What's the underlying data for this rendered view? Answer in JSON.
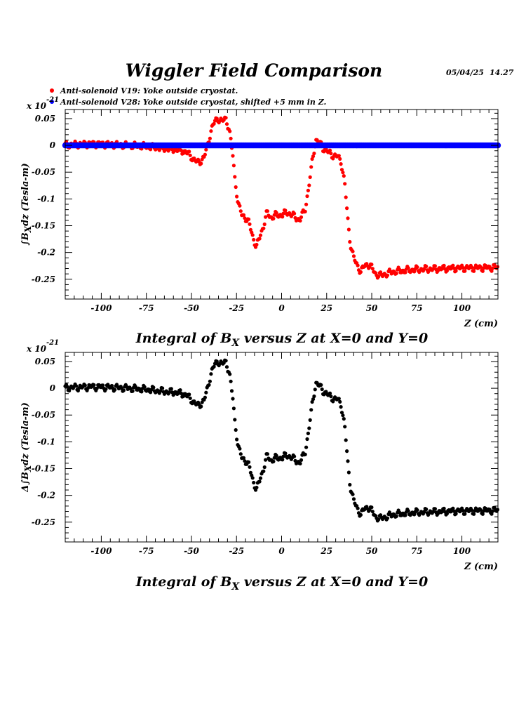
{
  "header": {
    "title": "Wiggler Field Comparison",
    "date": "05/04/25",
    "time": "14.27"
  },
  "legend": [
    {
      "label": "Anti-solenoid V19: Yoke outside cryostat.",
      "color": "#ff0000"
    },
    {
      "label": "Anti-solenoid V28: Yoke outside cryostat, shifted +5 mm in Z.",
      "color": "#0000ff"
    }
  ],
  "chart_data": [
    {
      "type": "scatter",
      "multiplier_prefix": "x 10",
      "multiplier_exponent": "-21",
      "ylabel_parts": [
        "∫B",
        "X",
        "dz  (Tesla-m)"
      ],
      "xlabel": "Z (cm)",
      "caption_parts": [
        "Integral of B",
        "X",
        " versus Z at X=0 and Y=0"
      ],
      "xlim": [
        -120,
        120
      ],
      "ylim": [
        -0.287,
        0.067
      ],
      "x_ticks": [
        -100,
        -75,
        -50,
        -25,
        0,
        25,
        50,
        75,
        100
      ],
      "x_tick_labels": [
        "-100",
        "-75",
        "-50",
        "-25",
        "0",
        "25",
        "50",
        "75",
        "100"
      ],
      "y_ticks": [
        0.05,
        0,
        -0.05,
        -0.1,
        -0.15,
        -0.2,
        -0.25
      ],
      "y_tick_labels": [
        "0.05",
        "0",
        "-0.05",
        "-0.1",
        "-0.15",
        "-0.2",
        "-0.25"
      ],
      "grid": false,
      "series": [
        {
          "color": "#ff0000",
          "profile": [
            [
              -120,
              0.001
            ],
            [
              -105,
              0.003
            ],
            [
              -95,
              0.002
            ],
            [
              -85,
              0.0
            ],
            [
              -75,
              -0.002
            ],
            [
              -65,
              -0.006
            ],
            [
              -58,
              -0.008
            ],
            [
              -53,
              -0.012
            ],
            [
              -49,
              -0.025
            ],
            [
              -46,
              -0.033
            ],
            [
              -43,
              -0.022
            ],
            [
              -41,
              0.0
            ],
            [
              -39,
              0.03
            ],
            [
              -37,
              0.045
            ],
            [
              -35,
              0.05
            ],
            [
              -33,
              0.045
            ],
            [
              -31,
              0.05
            ],
            [
              -29,
              0.03
            ],
            [
              -27,
              -0.02
            ],
            [
              -26,
              -0.06
            ],
            [
              -24,
              -0.11
            ],
            [
              -22,
              -0.13
            ],
            [
              -20,
              -0.135
            ],
            [
              -18,
              -0.145
            ],
            [
              -16,
              -0.17
            ],
            [
              -14,
              -0.19
            ],
            [
              -12,
              -0.17
            ],
            [
              -10,
              -0.15
            ],
            [
              -8,
              -0.125
            ],
            [
              -6,
              -0.135
            ],
            [
              -3,
              -0.13
            ],
            [
              0,
              -0.13
            ],
            [
              3,
              -0.125
            ],
            [
              6,
              -0.13
            ],
            [
              10,
              -0.14
            ],
            [
              13,
              -0.12
            ],
            [
              15,
              -0.08
            ],
            [
              17,
              -0.03
            ],
            [
              19,
              0.01
            ],
            [
              21,
              0.005
            ],
            [
              23,
              -0.005
            ],
            [
              25,
              -0.01
            ],
            [
              27,
              -0.015
            ],
            [
              29,
              -0.02
            ],
            [
              31,
              -0.02
            ],
            [
              33,
              -0.03
            ],
            [
              35,
              -0.07
            ],
            [
              36,
              -0.11
            ],
            [
              37,
              -0.15
            ],
            [
              38,
              -0.18
            ],
            [
              40,
              -0.21
            ],
            [
              42,
              -0.225
            ],
            [
              44,
              -0.235
            ],
            [
              46,
              -0.225
            ],
            [
              48,
              -0.222
            ],
            [
              50,
              -0.228
            ],
            [
              52,
              -0.24
            ],
            [
              55,
              -0.243
            ],
            [
              58,
              -0.24
            ],
            [
              62,
              -0.236
            ],
            [
              70,
              -0.233
            ],
            [
              80,
              -0.231
            ],
            [
              100,
              -0.229
            ],
            [
              120,
              -0.228
            ]
          ]
        },
        {
          "color": "#0000ff",
          "profile": [
            [
              -120,
              0.0
            ],
            [
              120,
              0.0
            ]
          ]
        }
      ]
    },
    {
      "type": "scatter",
      "multiplier_prefix": "x 10",
      "multiplier_exponent": "-21",
      "ylabel_parts": [
        "Δ∫B",
        "X",
        "dz  (Tesla-m)"
      ],
      "xlabel": "Z (cm)",
      "caption_parts": [
        "Integral of B",
        "X",
        " versus Z at X=0 and Y=0"
      ],
      "xlim": [
        -120,
        120
      ],
      "ylim": [
        -0.287,
        0.067
      ],
      "x_ticks": [
        -100,
        -75,
        -50,
        -25,
        0,
        25,
        50,
        75,
        100
      ],
      "x_tick_labels": [
        "-100",
        "-75",
        "-50",
        "-25",
        "0",
        "25",
        "50",
        "75",
        "100"
      ],
      "y_ticks": [
        0.05,
        0,
        -0.05,
        -0.1,
        -0.15,
        -0.2,
        -0.25
      ],
      "y_tick_labels": [
        "0.05",
        "0",
        "-0.05",
        "-0.1",
        "-0.15",
        "-0.2",
        "-0.25"
      ],
      "grid": false,
      "series": [
        {
          "color": "#000000",
          "profile": [
            [
              -120,
              0.001
            ],
            [
              -105,
              0.003
            ],
            [
              -95,
              0.002
            ],
            [
              -85,
              0.0
            ],
            [
              -75,
              -0.002
            ],
            [
              -65,
              -0.006
            ],
            [
              -58,
              -0.008
            ],
            [
              -53,
              -0.012
            ],
            [
              -49,
              -0.025
            ],
            [
              -46,
              -0.033
            ],
            [
              -43,
              -0.022
            ],
            [
              -41,
              0.0
            ],
            [
              -39,
              0.03
            ],
            [
              -37,
              0.045
            ],
            [
              -35,
              0.05
            ],
            [
              -33,
              0.045
            ],
            [
              -31,
              0.05
            ],
            [
              -29,
              0.03
            ],
            [
              -27,
              -0.02
            ],
            [
              -26,
              -0.06
            ],
            [
              -24,
              -0.11
            ],
            [
              -22,
              -0.13
            ],
            [
              -20,
              -0.135
            ],
            [
              -18,
              -0.145
            ],
            [
              -16,
              -0.17
            ],
            [
              -14,
              -0.19
            ],
            [
              -12,
              -0.17
            ],
            [
              -10,
              -0.15
            ],
            [
              -8,
              -0.125
            ],
            [
              -6,
              -0.135
            ],
            [
              -3,
              -0.13
            ],
            [
              0,
              -0.13
            ],
            [
              3,
              -0.125
            ],
            [
              6,
              -0.13
            ],
            [
              10,
              -0.14
            ],
            [
              13,
              -0.12
            ],
            [
              15,
              -0.08
            ],
            [
              17,
              -0.03
            ],
            [
              19,
              0.01
            ],
            [
              21,
              0.005
            ],
            [
              23,
              -0.005
            ],
            [
              25,
              -0.01
            ],
            [
              27,
              -0.015
            ],
            [
              29,
              -0.02
            ],
            [
              31,
              -0.02
            ],
            [
              33,
              -0.03
            ],
            [
              35,
              -0.07
            ],
            [
              36,
              -0.11
            ],
            [
              37,
              -0.15
            ],
            [
              38,
              -0.18
            ],
            [
              40,
              -0.21
            ],
            [
              42,
              -0.225
            ],
            [
              44,
              -0.235
            ],
            [
              46,
              -0.225
            ],
            [
              48,
              -0.222
            ],
            [
              50,
              -0.228
            ],
            [
              52,
              -0.24
            ],
            [
              55,
              -0.243
            ],
            [
              58,
              -0.24
            ],
            [
              62,
              -0.236
            ],
            [
              70,
              -0.233
            ],
            [
              80,
              -0.231
            ],
            [
              100,
              -0.229
            ],
            [
              120,
              -0.228
            ]
          ]
        }
      ]
    }
  ]
}
